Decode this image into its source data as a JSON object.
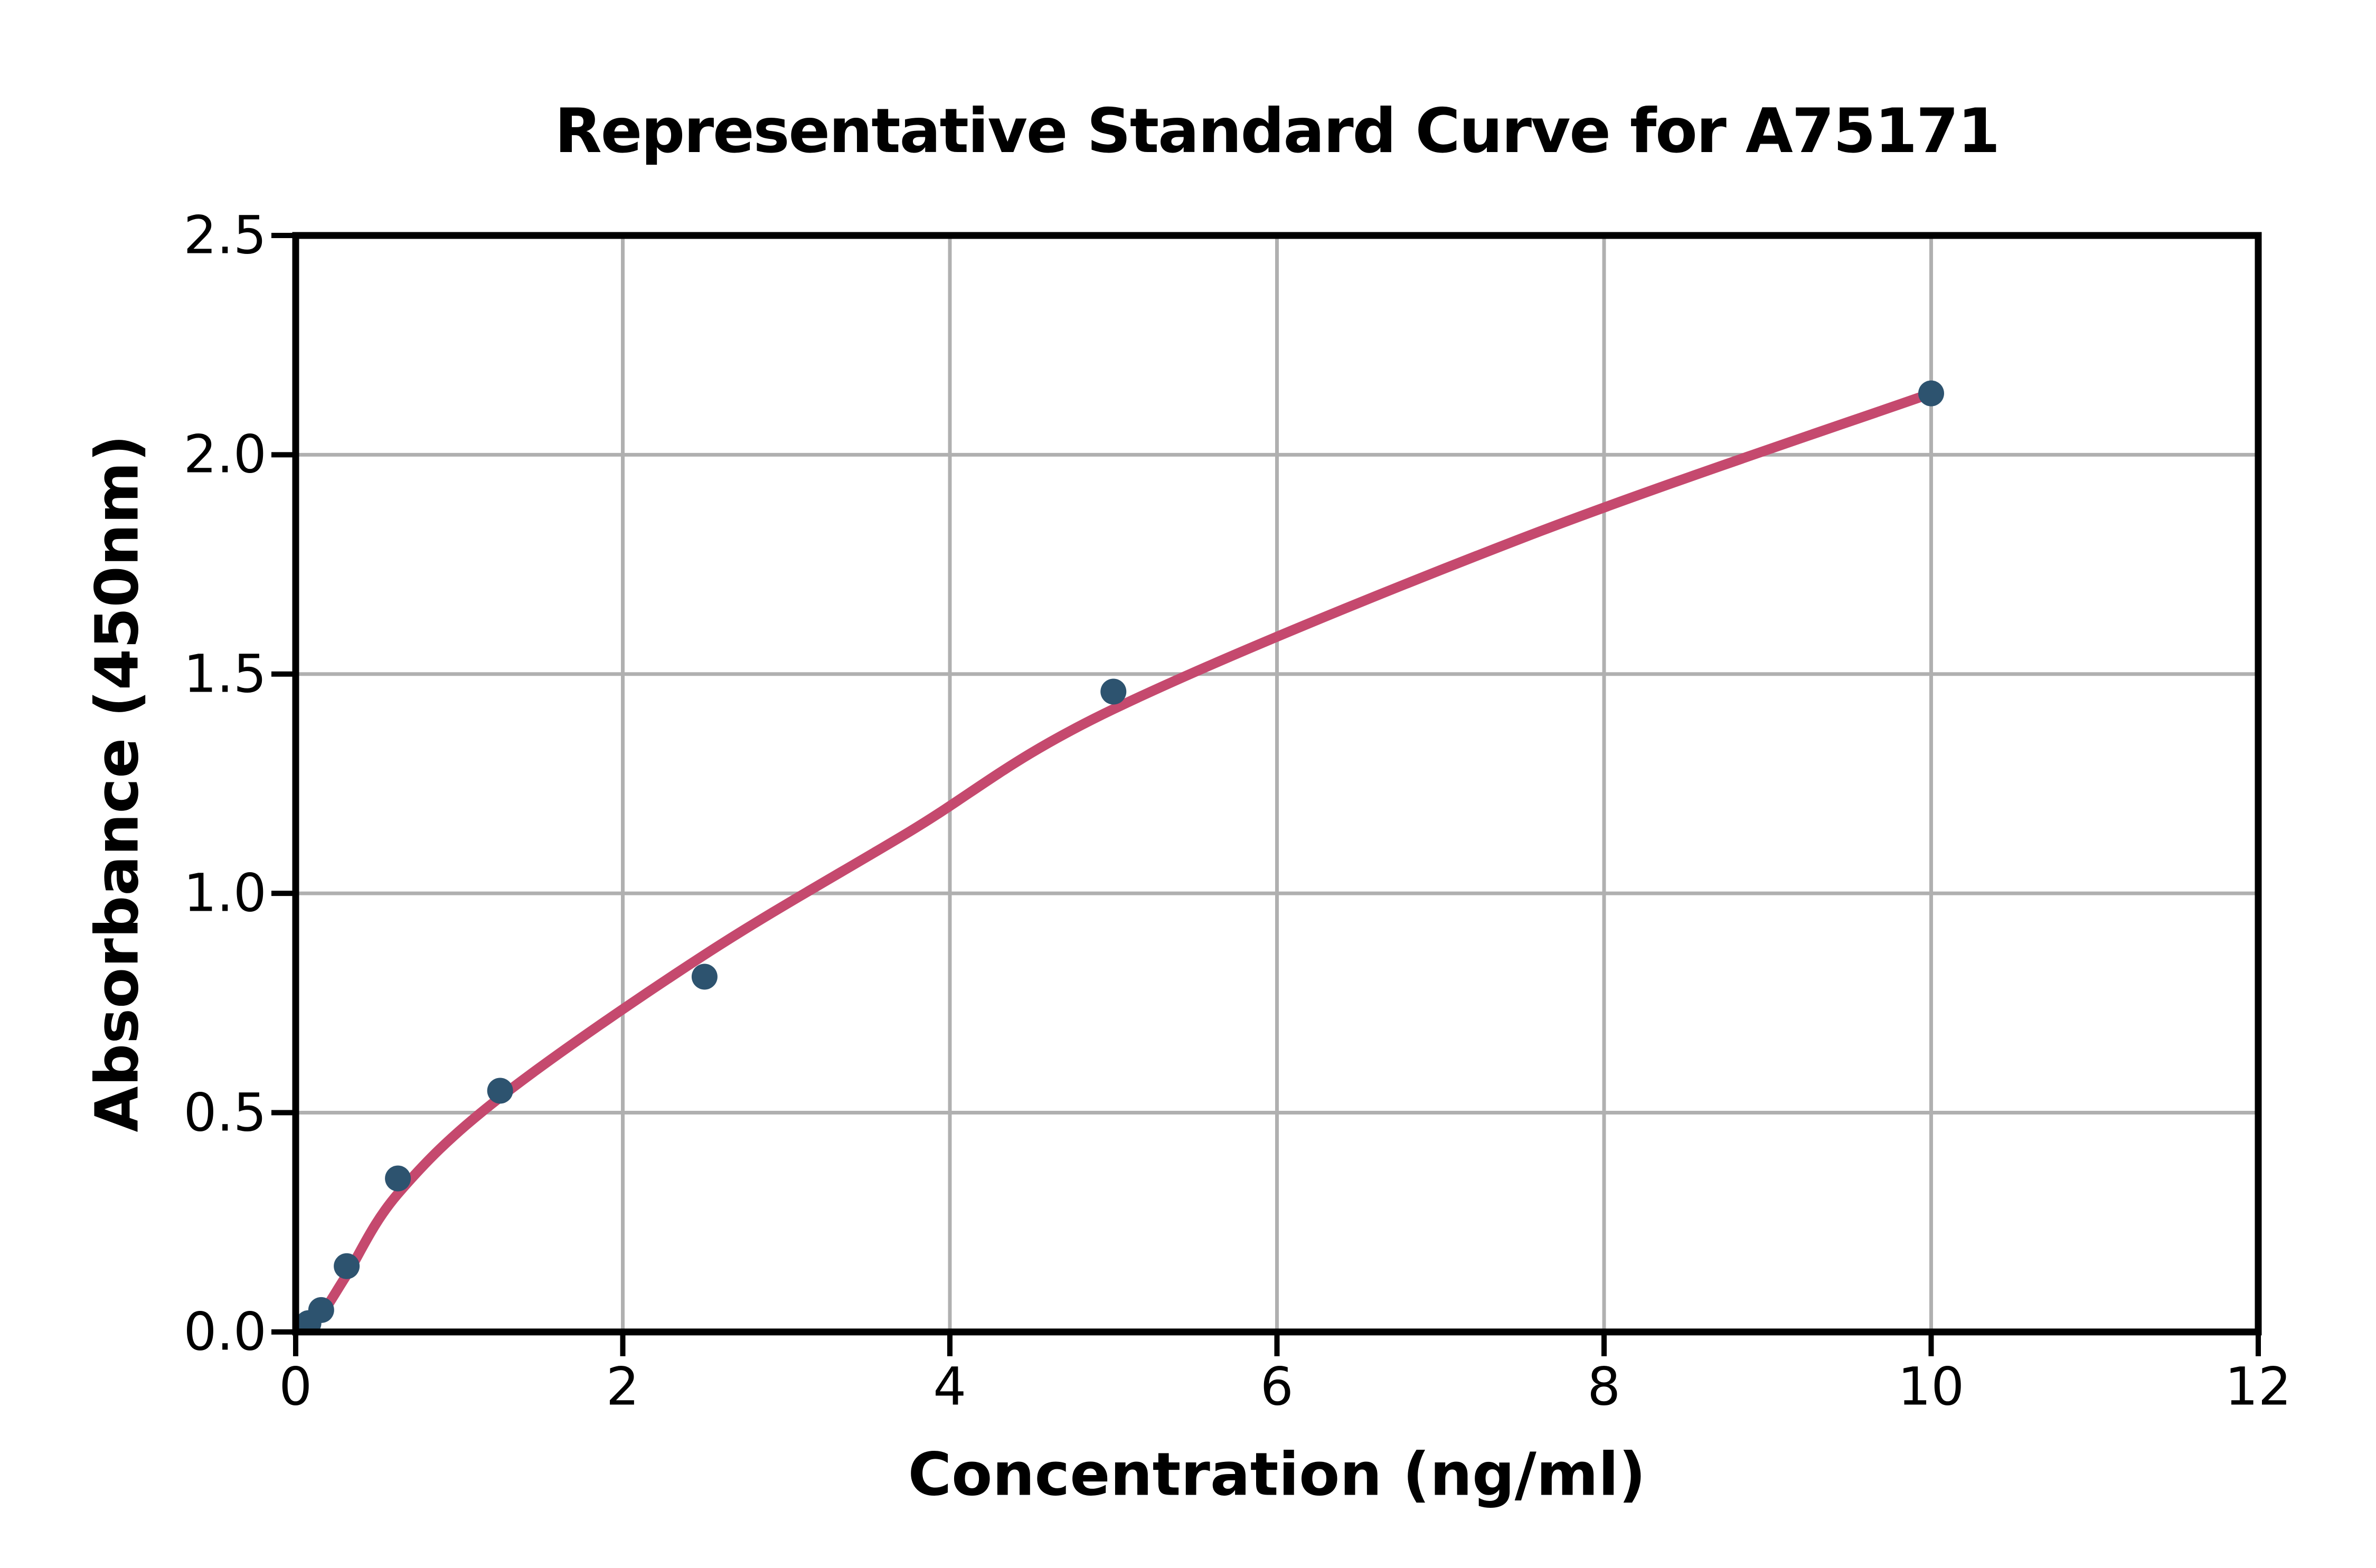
{
  "chart_data": {
    "type": "scatter",
    "title": "Representative Standard Curve for A75171",
    "xlabel": "Concentration (ng/ml)",
    "ylabel": "Absorbance (450nm)",
    "xlim": [
      0,
      12
    ],
    "ylim": [
      0,
      2.5
    ],
    "grid": true,
    "legend": "none",
    "x_ticks": {
      "values": [
        0,
        2,
        4,
        6,
        8,
        10,
        12
      ],
      "labels": [
        "0",
        "2",
        "4",
        "6",
        "8",
        "10",
        "12"
      ]
    },
    "y_ticks": {
      "values": [
        0,
        0.5,
        1.0,
        1.5,
        2.0,
        2.5
      ],
      "labels": [
        "0.0",
        "0.5",
        "1.0",
        "1.5",
        "2.0",
        "2.5"
      ]
    },
    "series": [
      {
        "name": "standard-points",
        "type": "scatter",
        "color": "#2d536f",
        "x": [
          0.078,
          0.156,
          0.312,
          0.625,
          1.25,
          2.5,
          5,
          10
        ],
        "y": [
          0.02,
          0.05,
          0.15,
          0.35,
          0.55,
          0.81,
          1.46,
          2.14
        ]
      },
      {
        "name": "fitted-curve",
        "type": "line",
        "color": "#c5496e",
        "points": [
          [
            0.04,
            0.0
          ],
          [
            0.156,
            0.04
          ],
          [
            0.312,
            0.13
          ],
          [
            0.625,
            0.315
          ],
          [
            1.25,
            0.535
          ],
          [
            2.5,
            0.86
          ],
          [
            3.75,
            1.14
          ],
          [
            5.0,
            1.42
          ],
          [
            7.5,
            1.81
          ],
          [
            10.0,
            2.14
          ]
        ]
      }
    ],
    "colors": {
      "background": "#ffffff",
      "spine": "#000000",
      "grid": "#b0b0b0",
      "tick": "#000000",
      "points": "#2d536f",
      "curve": "#c5496e"
    }
  }
}
